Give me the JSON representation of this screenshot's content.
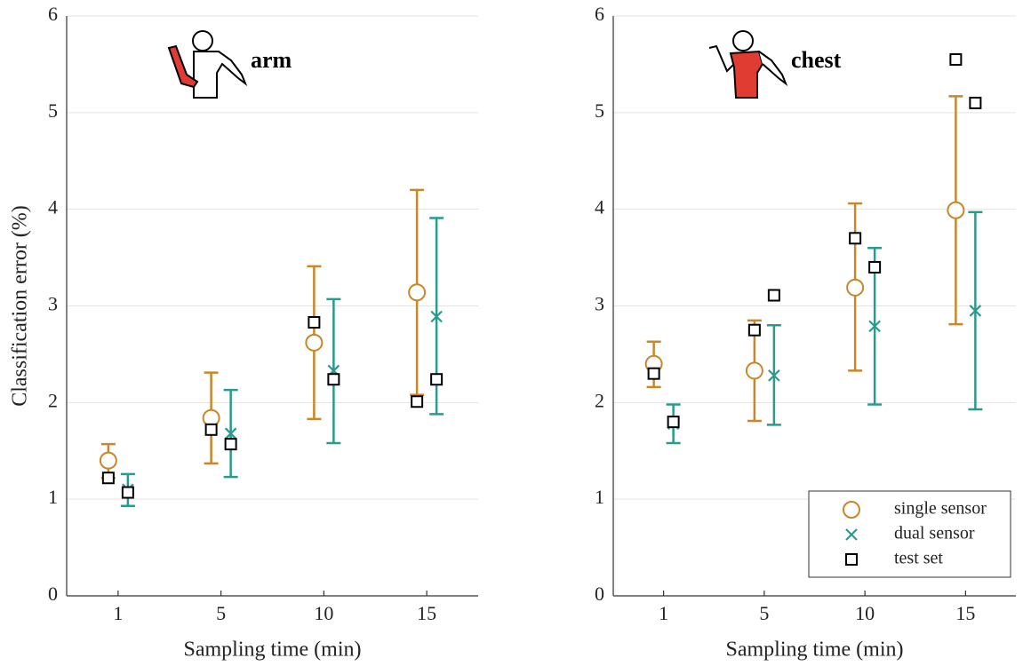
{
  "chart_data": [
    {
      "type": "errorbar",
      "annotation": "arm",
      "x_label": "Sampling time (min)",
      "y_label": "Classification error (%)",
      "categories": [
        "1",
        "5",
        "10",
        "15"
      ],
      "ylim": [
        0,
        6
      ],
      "yticks": [
        0,
        1,
        2,
        3,
        4,
        5,
        6
      ],
      "grid": true,
      "series": [
        {
          "marker": "circle",
          "color": "#c8872a",
          "values": [
            1.4,
            1.84,
            2.62,
            3.14
          ],
          "lower": [
            1.22,
            1.37,
            1.83,
            2.08
          ],
          "upper": [
            1.57,
            2.31,
            3.41,
            4.2
          ]
        },
        {
          "marker": "x",
          "color": "#2a9a8e",
          "values": [
            1.1,
            1.68,
            2.33,
            2.89
          ],
          "lower": [
            0.93,
            1.23,
            1.58,
            1.88
          ],
          "upper": [
            1.26,
            2.13,
            3.07,
            3.91
          ]
        },
        {
          "marker": "square",
          "color": "#000000",
          "values": [
            [
              1.22,
              1.07
            ],
            [
              1.72,
              1.57
            ],
            [
              2.83,
              2.24
            ],
            [
              2.01,
              2.24
            ]
          ]
        }
      ]
    },
    {
      "type": "errorbar",
      "annotation": "chest",
      "x_label": "Sampling time (min)",
      "categories": [
        "1",
        "5",
        "10",
        "15"
      ],
      "ylim": [
        0,
        6
      ],
      "yticks": [
        0,
        1,
        2,
        3,
        4,
        5,
        6
      ],
      "grid": true,
      "legend": "lower right",
      "series": [
        {
          "name": "single sensor",
          "marker": "circle",
          "color": "#c8872a",
          "values": [
            2.4,
            2.33,
            3.19,
            3.99
          ],
          "lower": [
            2.16,
            1.81,
            2.33,
            2.81
          ],
          "upper": [
            2.63,
            2.85,
            4.06,
            5.17
          ]
        },
        {
          "name": "dual sensor",
          "marker": "x",
          "color": "#2a9a8e",
          "values": [
            1.78,
            2.28,
            2.79,
            2.95
          ],
          "lower": [
            1.58,
            1.77,
            1.98,
            1.93
          ],
          "upper": [
            1.98,
            2.8,
            3.6,
            3.97
          ]
        },
        {
          "name": "test set",
          "marker": "square",
          "color": "#000000",
          "values": [
            [
              2.3,
              1.8
            ],
            [
              2.75,
              3.11
            ],
            [
              3.7,
              3.4
            ],
            [
              5.55,
              5.1
            ]
          ]
        }
      ]
    }
  ]
}
